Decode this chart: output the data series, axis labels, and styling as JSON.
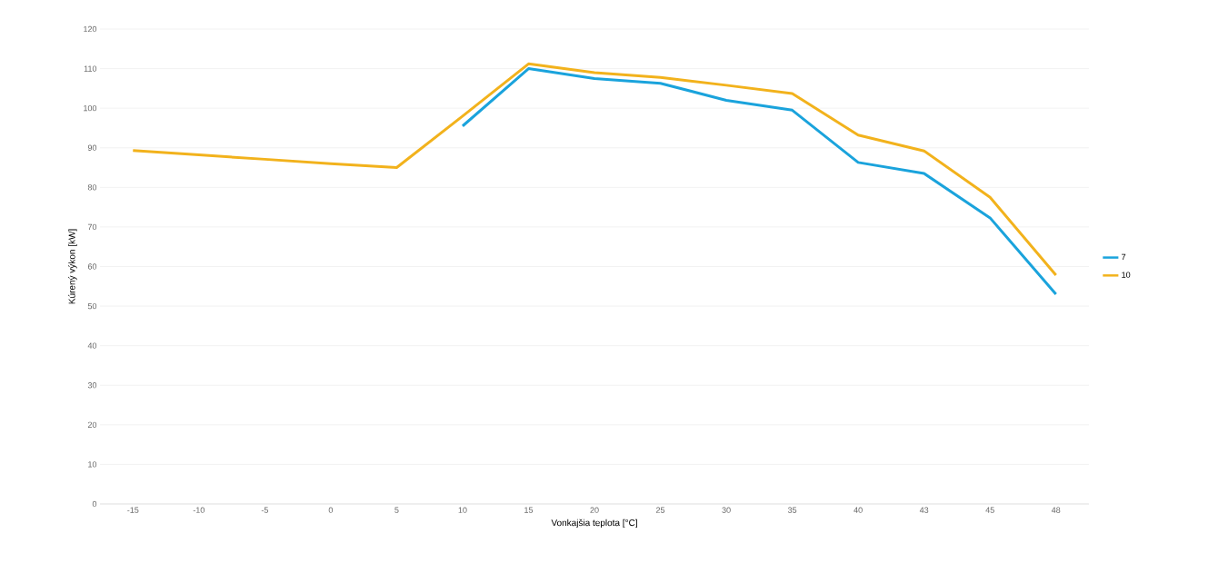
{
  "chart_data": {
    "type": "line",
    "xlabel": "Vonkajšia teplota [°C]",
    "ylabel": "Kúrený výkon [kW]",
    "categories": [
      "-15",
      "-10",
      "-5",
      "0",
      "5",
      "10",
      "15",
      "20",
      "25",
      "30",
      "35",
      "40",
      "43",
      "45",
      "48"
    ],
    "series": [
      {
        "name": "7",
        "color": "#1aa3dc",
        "values": [
          null,
          null,
          null,
          null,
          null,
          95.5,
          110,
          107.5,
          106.3,
          102,
          99.5,
          86.3,
          83.5,
          72.3,
          53
        ]
      },
      {
        "name": "10",
        "color": "#f2b21c",
        "values": [
          89.3,
          88.2,
          87.1,
          86,
          85,
          98,
          111.2,
          109,
          107.8,
          105.8,
          103.7,
          93.2,
          89.2,
          77.5,
          57.8
        ]
      }
    ],
    "ylim": [
      0,
      120
    ],
    "yticks": [
      0,
      10,
      20,
      30,
      40,
      50,
      60,
      70,
      80,
      90,
      100,
      110,
      120
    ],
    "grid": "y",
    "legend": "right",
    "marker": "none",
    "line_style": "solid"
  }
}
